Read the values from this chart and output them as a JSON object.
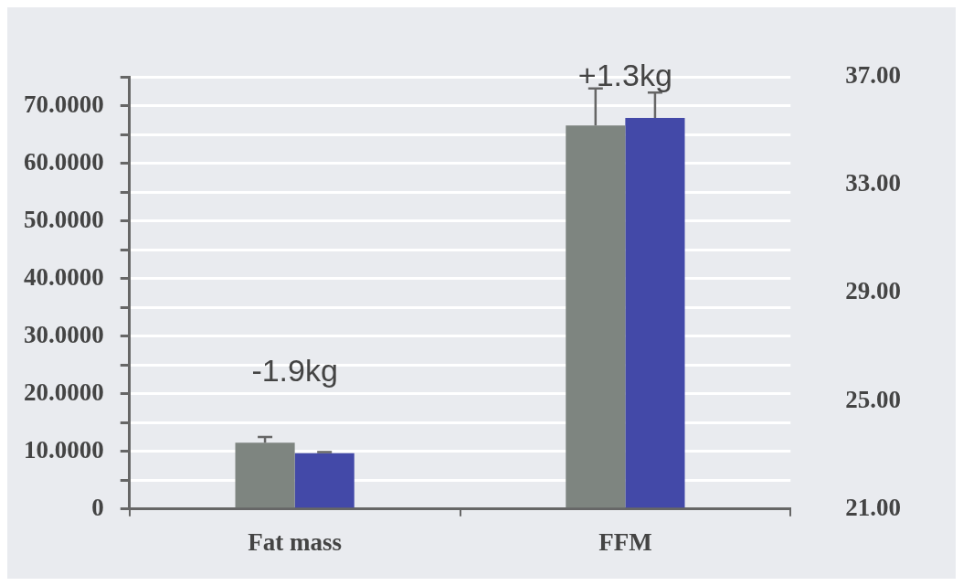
{
  "chart_data": {
    "type": "bar",
    "categories": [
      "Fat mass",
      "FFM"
    ],
    "series": [
      {
        "color": "#7e8580",
        "values": [
          11.5,
          66.6
        ],
        "errors": [
          [
            11.5,
            12.5
          ],
          [
            66.6,
            73.0
          ]
        ]
      },
      {
        "color": "#4349a8",
        "values": [
          9.7,
          67.9
        ],
        "errors": [
          [
            9.7,
            9.9
          ],
          [
            67.9,
            72.3
          ]
        ]
      }
    ],
    "ylim": [
      0,
      75
    ],
    "yticks": [
      {
        "value": 0,
        "label": "0"
      },
      {
        "value": 5,
        "label": null
      },
      {
        "value": 10,
        "label": "10.0000"
      },
      {
        "value": 15,
        "label": null
      },
      {
        "value": 20,
        "label": "20.0000"
      },
      {
        "value": 25,
        "label": null
      },
      {
        "value": 30,
        "label": "30.0000"
      },
      {
        "value": 35,
        "label": null
      },
      {
        "value": 40,
        "label": "40.0000"
      },
      {
        "value": 45,
        "label": null
      },
      {
        "value": 50,
        "label": "50.0000"
      },
      {
        "value": 55,
        "label": null
      },
      {
        "value": 60,
        "label": "60.0000"
      },
      {
        "value": 65,
        "label": null
      },
      {
        "value": 70,
        "label": "70.0000"
      },
      {
        "value": 75,
        "label": null
      }
    ],
    "y2lim": [
      21,
      37
    ],
    "y2ticks": [
      {
        "value": 21,
        "label": "21.00"
      },
      {
        "value": 25,
        "label": "25.00"
      },
      {
        "value": 29,
        "label": "29.00"
      },
      {
        "value": 33,
        "label": "33.00"
      },
      {
        "value": 37,
        "label": "37.00"
      }
    ],
    "annotations": [
      "-1.9kg",
      "+1.3kg"
    ],
    "grid": "y",
    "legend": false
  }
}
